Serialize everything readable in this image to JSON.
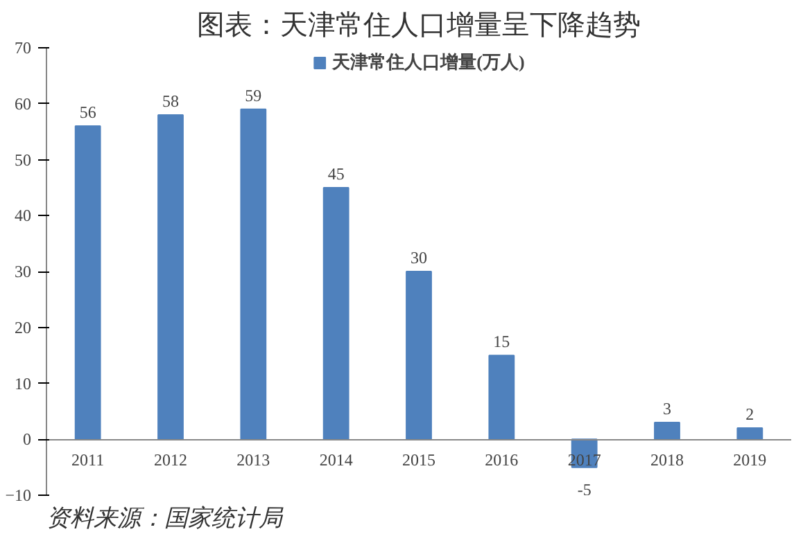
{
  "chart_data": {
    "type": "bar",
    "title": "图表：天津常住人口增量呈下降趋势",
    "categories": [
      "2011",
      "2012",
      "2013",
      "2014",
      "2015",
      "2016",
      "2017",
      "2018",
      "2019"
    ],
    "series": [
      {
        "name": "天津常住人口增量(万人)",
        "color": "#4f81bd",
        "values": [
          56,
          58,
          59,
          45,
          30,
          15,
          -5,
          3,
          2
        ]
      }
    ],
    "ylim": [
      -10,
      70
    ],
    "yticks": [
      -10,
      0,
      10,
      20,
      30,
      40,
      50,
      60,
      70
    ],
    "grid": false,
    "legend": "top",
    "data_labels": true,
    "annotations": [
      "资料来源：国家统计局"
    ]
  }
}
